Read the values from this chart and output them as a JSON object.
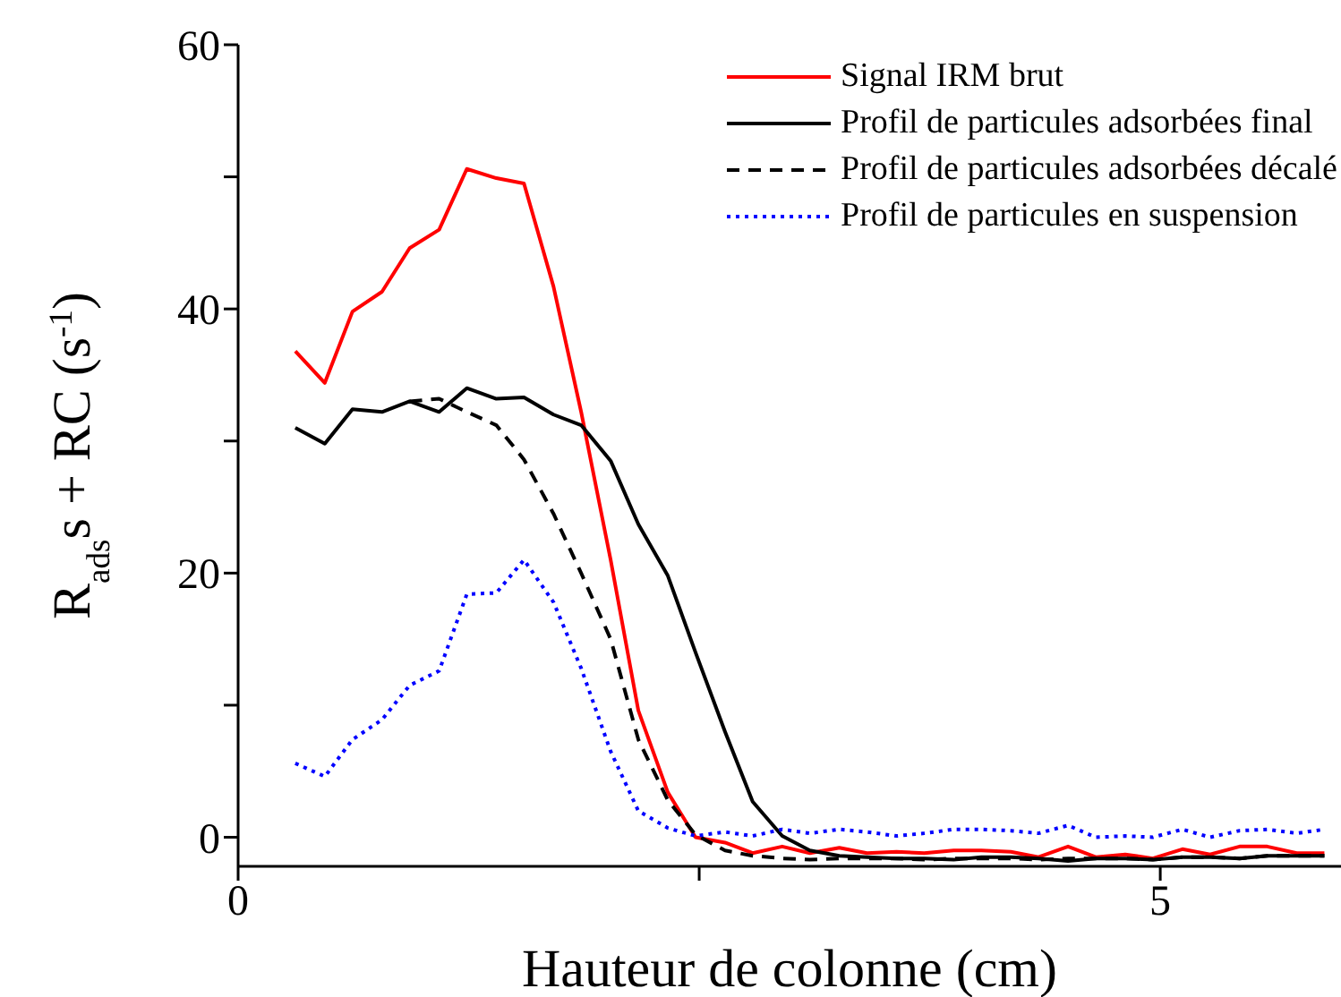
{
  "chart_data": {
    "type": "line",
    "xlabel": "Hauteur de colonne (cm)",
    "ylabel": "R$_{ads}$s + RC (s$^{-1}$)",
    "x": [
      0.31,
      0.47,
      0.62,
      0.78,
      0.93,
      1.09,
      1.24,
      1.4,
      1.55,
      1.71,
      1.86,
      2.02,
      2.17,
      2.33,
      2.48,
      2.64,
      2.79,
      2.95,
      3.1,
      3.26,
      3.41,
      3.57,
      3.72,
      3.88,
      4.03,
      4.19,
      4.34,
      4.5,
      4.65,
      4.81,
      4.96,
      5.12,
      5.27,
      5.43,
      5.58,
      5.74,
      5.89
    ],
    "series": [
      {
        "name": "Signal IRM brut",
        "color": "#ff0000",
        "line_style": "solid",
        "values": [
          36.8,
          34.4,
          39.8,
          41.3,
          44.6,
          46.0,
          50.6,
          49.9,
          49.5,
          41.7,
          32.2,
          21.0,
          9.6,
          3.4,
          0,
          -0.4,
          -1.2,
          -0.7,
          -1.2,
          -0.8,
          -1.2,
          -1.1,
          -1.2,
          -1.0,
          -1.0,
          -1.1,
          -1.5,
          -0.7,
          -1.5,
          -1.3,
          -1.6,
          -0.9,
          -1.3,
          -0.7,
          -0.7,
          -1.2,
          -1.2
        ]
      },
      {
        "name": "Profil de particules adsorbées final",
        "color": "#000000",
        "line_style": "solid",
        "values": [
          31.0,
          29.8,
          32.4,
          32.2,
          33.0,
          32.2,
          34.0,
          33.2,
          33.3,
          32.0,
          31.2,
          28.5,
          23.7,
          19.8,
          14.0,
          8.0,
          2.7,
          0.1,
          -1.0,
          -1.4,
          -1.5,
          -1.6,
          -1.6,
          -1.7,
          -1.5,
          -1.5,
          -1.6,
          -1.8,
          -1.6,
          -1.6,
          -1.7,
          -1.5,
          -1.5,
          -1.6,
          -1.4,
          -1.4,
          -1.4
        ]
      },
      {
        "name": "Profil de particules adsorbées décalé",
        "color": "#000000",
        "line_style": "dashed",
        "values": [
          null,
          null,
          null,
          null,
          33.0,
          33.2,
          32.2,
          31.2,
          28.6,
          24.5,
          20.0,
          15.0,
          7.4,
          2.8,
          0.2,
          -1.0,
          -1.4,
          -1.6,
          -1.7,
          -1.6,
          -1.6,
          -1.6,
          -1.7,
          -1.6,
          -1.6,
          -1.6,
          -1.7,
          -1.6,
          -1.6,
          -1.6,
          -1.7,
          -1.5,
          -1.5,
          -1.6,
          -1.4,
          -1.4,
          -1.4
        ]
      },
      {
        "name": "Profil de particules en suspension",
        "color": "#0000ff",
        "line_style": "dotted",
        "values": [
          5.6,
          4.6,
          7.4,
          8.9,
          11.5,
          12.6,
          18.4,
          18.5,
          21.0,
          17.8,
          12.8,
          6.5,
          2.0,
          0.7,
          0.1,
          0.4,
          0.1,
          0.6,
          0.3,
          0.6,
          0.4,
          0.1,
          0.3,
          0.6,
          0.6,
          0.5,
          0.3,
          0.9,
          0.0,
          0.1,
          0.0,
          0.6,
          0.0,
          0.5,
          0.6,
          0.3,
          0.6
        ]
      }
    ],
    "xlim": [
      0,
      5.98
    ],
    "xticks": [
      0,
      {
        "value": 2.5,
        "label": null
      },
      5
    ],
    "ylim": [
      -2.2,
      60
    ],
    "yticks": [
      0,
      {
        "value": 10,
        "label": null
      },
      20,
      {
        "value": 30,
        "label": null
      },
      40,
      {
        "value": 50,
        "label": null
      },
      60
    ],
    "legend": "top right"
  }
}
